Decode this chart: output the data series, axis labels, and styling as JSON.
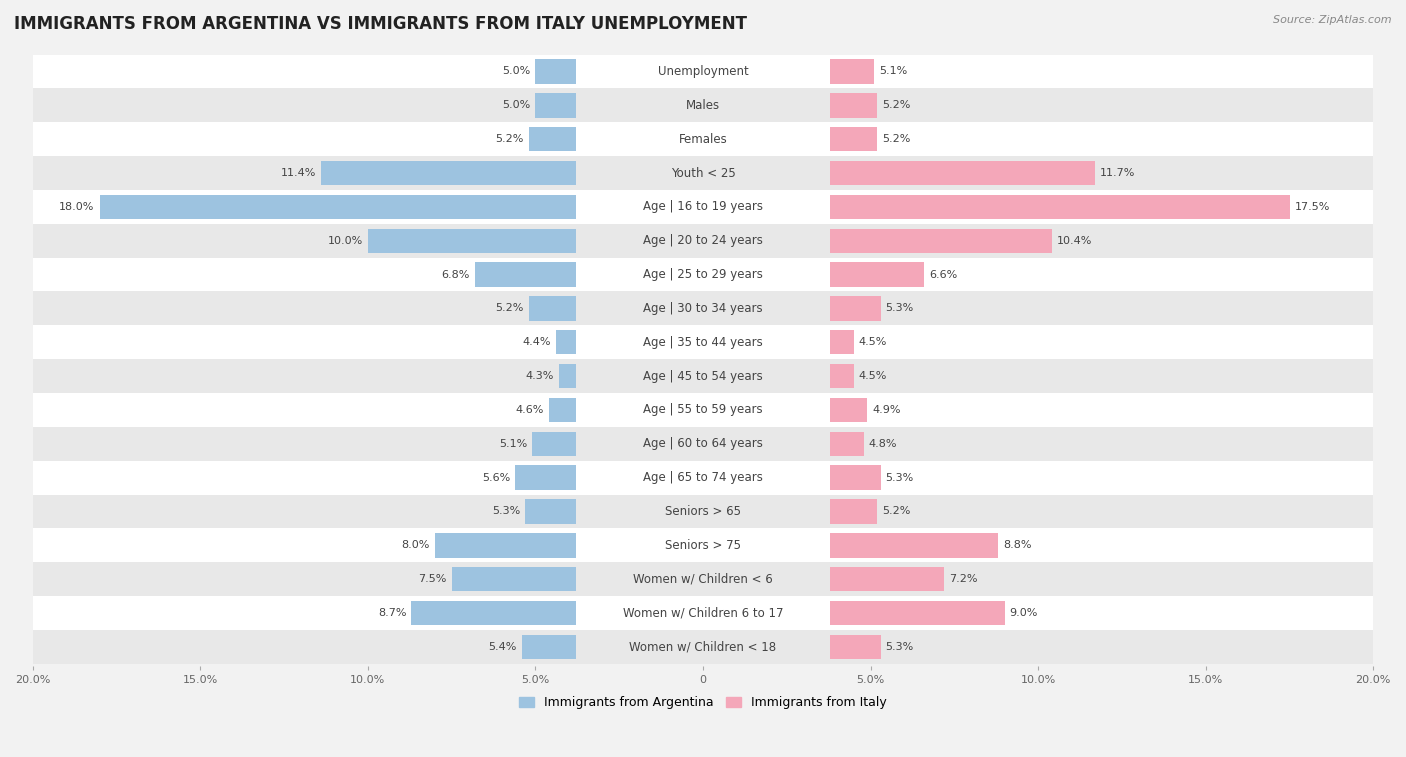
{
  "title": "IMMIGRANTS FROM ARGENTINA VS IMMIGRANTS FROM ITALY UNEMPLOYMENT",
  "source": "Source: ZipAtlas.com",
  "categories": [
    "Unemployment",
    "Males",
    "Females",
    "Youth < 25",
    "Age | 16 to 19 years",
    "Age | 20 to 24 years",
    "Age | 25 to 29 years",
    "Age | 30 to 34 years",
    "Age | 35 to 44 years",
    "Age | 45 to 54 years",
    "Age | 55 to 59 years",
    "Age | 60 to 64 years",
    "Age | 65 to 74 years",
    "Seniors > 65",
    "Seniors > 75",
    "Women w/ Children < 6",
    "Women w/ Children 6 to 17",
    "Women w/ Children < 18"
  ],
  "argentina_values": [
    5.0,
    5.0,
    5.2,
    11.4,
    18.0,
    10.0,
    6.8,
    5.2,
    4.4,
    4.3,
    4.6,
    5.1,
    5.6,
    5.3,
    8.0,
    7.5,
    8.7,
    5.4
  ],
  "italy_values": [
    5.1,
    5.2,
    5.2,
    11.7,
    17.5,
    10.4,
    6.6,
    5.3,
    4.5,
    4.5,
    4.9,
    4.8,
    5.3,
    5.2,
    8.8,
    7.2,
    9.0,
    5.3
  ],
  "argentina_color": "#9dc3e0",
  "italy_color": "#f4a7b9",
  "axis_limit": 20.0,
  "background_color": "#f2f2f2",
  "row_light": "#ffffff",
  "row_dark": "#e8e8e8",
  "legend_argentina": "Immigrants from Argentina",
  "legend_italy": "Immigrants from Italy",
  "title_fontsize": 12,
  "label_fontsize": 8.5,
  "value_fontsize": 8,
  "source_fontsize": 8
}
